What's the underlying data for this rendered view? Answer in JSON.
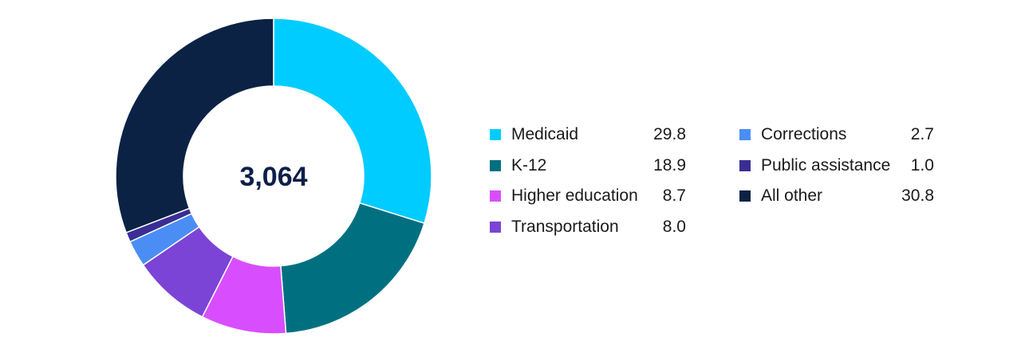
{
  "chart_data": {
    "type": "pie",
    "donut": true,
    "center_label": "3,064",
    "categories": [
      "Medicaid",
      "K-12",
      "Higher education",
      "Transportation",
      "Corrections",
      "Public assistance",
      "All other"
    ],
    "values": [
      29.8,
      18.9,
      8.7,
      8.0,
      2.7,
      1.0,
      30.8
    ],
    "value_labels": [
      "29.8",
      "18.9",
      "8.7",
      "8.0",
      "2.7",
      "1.0",
      "30.8"
    ],
    "colors": [
      "#00ccff",
      "#007080",
      "#d84eff",
      "#7b44d6",
      "#4a8ef5",
      "#3a2e94",
      "#0b2245"
    ],
    "legend_placement": "right"
  }
}
